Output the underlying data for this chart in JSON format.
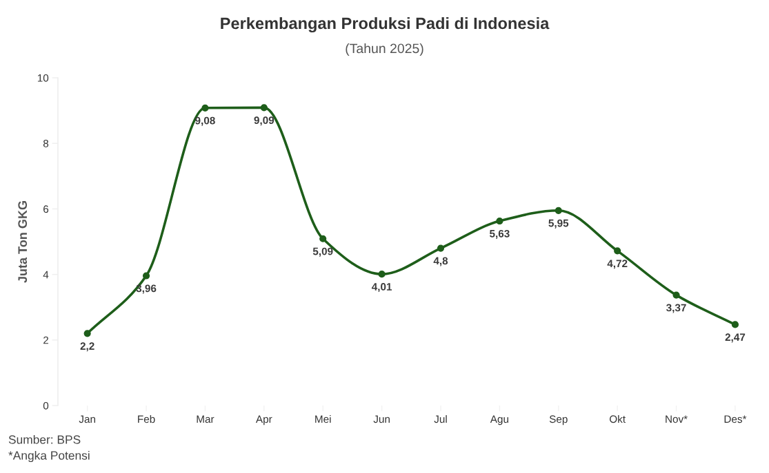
{
  "chart_data": {
    "type": "line",
    "title": "Perkembangan Produksi Padi di Indonesia",
    "subtitle": "(Tahun 2025)",
    "ylabel": "Juta Ton GKG",
    "categories": [
      "Jan",
      "Feb",
      "Mar",
      "Apr",
      "Mei",
      "Jun",
      "Jul",
      "Agu",
      "Sep",
      "Okt",
      "Nov*",
      "Des*"
    ],
    "values": [
      2.2,
      3.96,
      9.08,
      9.09,
      5.09,
      4.01,
      4.8,
      5.63,
      5.95,
      4.72,
      3.37,
      2.47
    ],
    "value_labels": [
      "2,2",
      "3,96",
      "9,08",
      "9,09",
      "5,09",
      "4,01",
      "4,8",
      "5,63",
      "5,95",
      "4,72",
      "3,37",
      "2,47"
    ],
    "color": "#1e5e1a",
    "ylim": [
      0,
      10
    ],
    "yticks": [
      0,
      2,
      4,
      6,
      8,
      10
    ],
    "grid": false,
    "marker": "circle",
    "line_style": "solid",
    "annotations": [
      "Sumber: BPS",
      "*Angka Potensi"
    ]
  }
}
